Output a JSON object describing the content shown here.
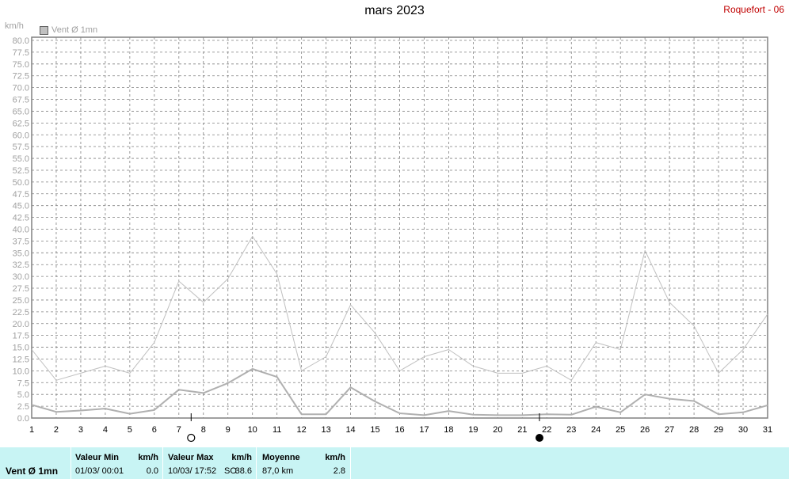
{
  "title": "mars 2023",
  "station": "Roquefort - 06",
  "unit": "km/h",
  "legend": {
    "label": "Vent Ø 1mn"
  },
  "colors": {
    "max_line": "#c0c0c0",
    "avg_line": "#b0b0b0",
    "grid": "#808080",
    "footer_bg": "#c8f4f4",
    "station_text": "#c00000"
  },
  "chart_data": {
    "type": "line",
    "title": "mars 2023",
    "xlabel": "",
    "ylabel": "km/h",
    "ylim": [
      0,
      80
    ],
    "xlim": [
      1,
      31
    ],
    "y_ticks": [
      "0.0",
      "2.5",
      "5.0",
      "7.5",
      "10.0",
      "12.5",
      "15.0",
      "17.5",
      "20.0",
      "22.5",
      "25.0",
      "27.5",
      "30.0",
      "32.5",
      "35.0",
      "37.5",
      "40.0",
      "42.5",
      "45.0",
      "47.5",
      "50.0",
      "52.5",
      "55.0",
      "57.5",
      "60.0",
      "62.5",
      "65.0",
      "67.5",
      "70.0",
      "72.5",
      "75.0",
      "77.5",
      "80.0"
    ],
    "x": [
      1,
      2,
      3,
      4,
      5,
      6,
      7,
      8,
      9,
      10,
      11,
      12,
      13,
      14,
      15,
      16,
      17,
      18,
      19,
      20,
      21,
      22,
      23,
      24,
      25,
      26,
      27,
      28,
      29,
      30,
      31
    ],
    "x_tick_labels": [
      "1",
      "2",
      "3",
      "4",
      "5",
      "6",
      "7",
      "8",
      "9",
      "10",
      "11",
      "12",
      "13",
      "14",
      "15",
      "16",
      "17",
      "18",
      "19",
      "20",
      "21",
      "22",
      "23",
      "24",
      "25",
      "26",
      "27",
      "28",
      "29",
      "30",
      "31"
    ],
    "series": [
      {
        "values": [
          14.5,
          8.0,
          9.5,
          11.0,
          9.5,
          16.0,
          29.0,
          24.5,
          29.5,
          38.5,
          30.5,
          10.0,
          13.0,
          24.0,
          18.0,
          10.0,
          13.0,
          14.5,
          11.0,
          9.5,
          9.5,
          11.0,
          8.0,
          16.0,
          14.5,
          35.5,
          24.5,
          19.5,
          9.5,
          14.5,
          22.0
        ]
      },
      {
        "name": "Vent Ø 1mn",
        "values": [
          2.8,
          1.3,
          1.6,
          2.0,
          0.9,
          1.7,
          6.0,
          5.3,
          7.4,
          10.4,
          8.7,
          0.8,
          0.8,
          6.5,
          3.5,
          1.0,
          0.6,
          1.5,
          0.7,
          0.6,
          0.6,
          0.8,
          0.7,
          2.4,
          1.2,
          5.0,
          4.1,
          3.6,
          0.8,
          1.2,
          2.7
        ]
      }
    ],
    "moon_phases": [
      {
        "day": 7.5,
        "phase": "full"
      },
      {
        "day": 21.7,
        "phase": "new"
      }
    ],
    "grid": true,
    "legend_position": "top-left"
  },
  "footer": {
    "series_label": "Vent Ø 1mn",
    "min": {
      "header": "Valeur Min",
      "unit": "km/h",
      "date": "01/03/  00:01",
      "value": "0.0"
    },
    "max": {
      "header": "Valeur Max",
      "unit": "km/h",
      "date": "10/03/  17:52",
      "dir": "SO",
      "value": "38.6"
    },
    "avg": {
      "header": "Moyenne",
      "unit": "km/h",
      "distance": "87,0 km",
      "value": "2.8"
    }
  }
}
